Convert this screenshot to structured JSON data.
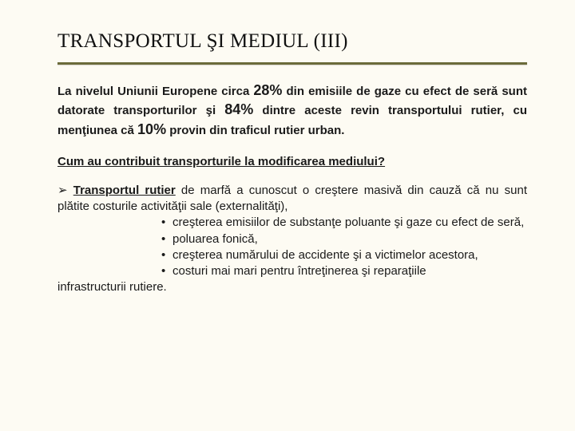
{
  "title": "TRANSPORTUL ŞI MEDIUL (III)",
  "intro": {
    "t1": "La nivelul Uniunii Europene circa ",
    "p1": "28%",
    "t2": " din emisiile de gaze cu efect de seră sunt datorate transporturilor şi ",
    "p2": "84%",
    "t3": " dintre aceste revin transportului rutier, cu menţiunea că ",
    "p3": "10%",
    "t4": " provin din traficul rutier urban."
  },
  "question": "Cum au contribuit transporturile la modificarea mediului?",
  "lead": {
    "arrow": "➢ ",
    "strong": "Transportul rutier",
    "rest": " de marfă a cunoscut o creştere masivă din cauză că nu sunt plătite costurile activităţii sale (externalităţi),"
  },
  "bullets": [
    "creşterea emisiilor de substanţe poluante şi gaze cu efect de seră,",
    "poluarea fonică,",
    "creşterea numărului de accidente şi a victimelor acestora,",
    "costuri mai mari pentru întreţinerea şi reparaţiile"
  ],
  "tail": "infrastructurii rutiere.",
  "colors": {
    "background": "#fdfbf3",
    "underline": "#6b6b3a",
    "text": "#1a1a1a"
  },
  "typography": {
    "title_font": "Times New Roman",
    "body_font": "Arial",
    "title_size_pt": 19,
    "body_size_pt": 11,
    "pct_size_pt": 14
  }
}
